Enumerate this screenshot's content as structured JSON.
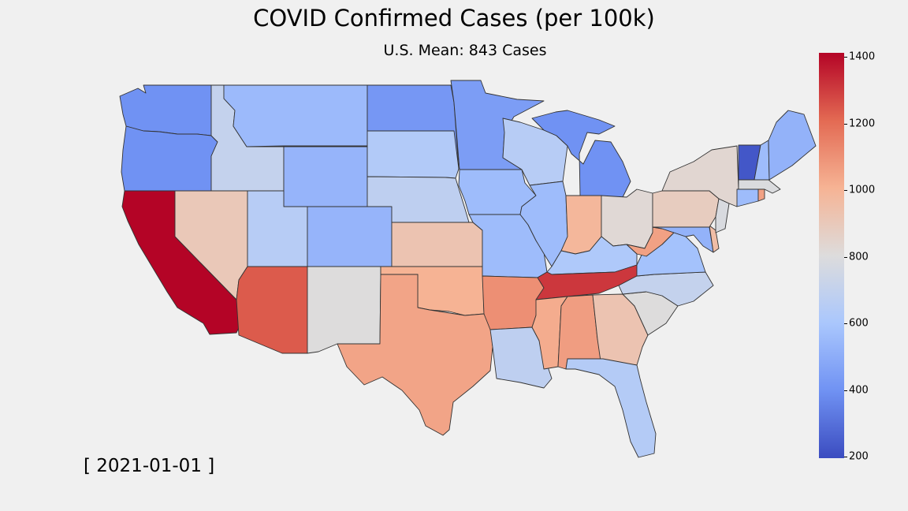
{
  "map": {
    "title": "COVID Confirmed Cases (per 100k)",
    "subtitle": "U.S. Mean: 843 Cases",
    "date_label": "[ 2021-01-01 ]",
    "colorbar": {
      "min": 200,
      "max": 1400,
      "ticks": [
        "200",
        "400",
        "600",
        "800",
        "1000",
        "1200",
        "1400"
      ],
      "colormap": "coolwarm",
      "stops": [
        "#3b4cc0",
        "#7092f3",
        "#aac7fd",
        "#dddcdc",
        "#f6b394",
        "#e36a53",
        "#b40426"
      ]
    },
    "border_color": "#333333"
  },
  "chart_data": {
    "type": "choropleth",
    "title": "COVID Confirmed Cases (per 100k)",
    "subtitle": "U.S. Mean: 843 Cases",
    "date": "2021-01-01",
    "value_range": [
      200,
      1400
    ],
    "states": [
      {
        "state": "WA",
        "value": 400
      },
      {
        "state": "OR",
        "value": 400
      },
      {
        "state": "CA",
        "value": 1400
      },
      {
        "state": "NV",
        "value": 900
      },
      {
        "state": "ID",
        "value": 700
      },
      {
        "state": "MT",
        "value": 550
      },
      {
        "state": "WY",
        "value": 530
      },
      {
        "state": "UT",
        "value": 650
      },
      {
        "state": "AZ",
        "value": 1230
      },
      {
        "state": "CO",
        "value": 530
      },
      {
        "state": "NM",
        "value": 800
      },
      {
        "state": "ND",
        "value": 420
      },
      {
        "state": "SD",
        "value": 630
      },
      {
        "state": "NE",
        "value": 680
      },
      {
        "state": "KS",
        "value": 920
      },
      {
        "state": "OK",
        "value": 1000
      },
      {
        "state": "TX",
        "value": 1040
      },
      {
        "state": "MN",
        "value": 440
      },
      {
        "state": "IA",
        "value": 560
      },
      {
        "state": "MO",
        "value": 560
      },
      {
        "state": "AR",
        "value": 1100
      },
      {
        "state": "LA",
        "value": 680
      },
      {
        "state": "WI",
        "value": 650
      },
      {
        "state": "IL",
        "value": 560
      },
      {
        "state": "MI",
        "value": 400
      },
      {
        "state": "IN",
        "value": 980
      },
      {
        "state": "OH",
        "value": 820
      },
      {
        "state": "KY",
        "value": 620
      },
      {
        "state": "TN",
        "value": 1300
      },
      {
        "state": "MS",
        "value": 1020
      },
      {
        "state": "AL",
        "value": 1060
      },
      {
        "state": "GA",
        "value": 920
      },
      {
        "state": "FL",
        "value": 640
      },
      {
        "state": "SC",
        "value": 800
      },
      {
        "state": "NC",
        "value": 700
      },
      {
        "state": "VA",
        "value": 580
      },
      {
        "state": "WV",
        "value": 1050
      },
      {
        "state": "MD",
        "value": 520
      },
      {
        "state": "DE",
        "value": 950
      },
      {
        "state": "PA",
        "value": 880
      },
      {
        "state": "NJ",
        "value": 780
      },
      {
        "state": "NY",
        "value": 830
      },
      {
        "state": "CT",
        "value": 560
      },
      {
        "state": "RI",
        "value": 1050
      },
      {
        "state": "MA",
        "value": 790
      },
      {
        "state": "VT",
        "value": 230
      },
      {
        "state": "NH",
        "value": 560
      },
      {
        "state": "ME",
        "value": 520
      }
    ]
  }
}
